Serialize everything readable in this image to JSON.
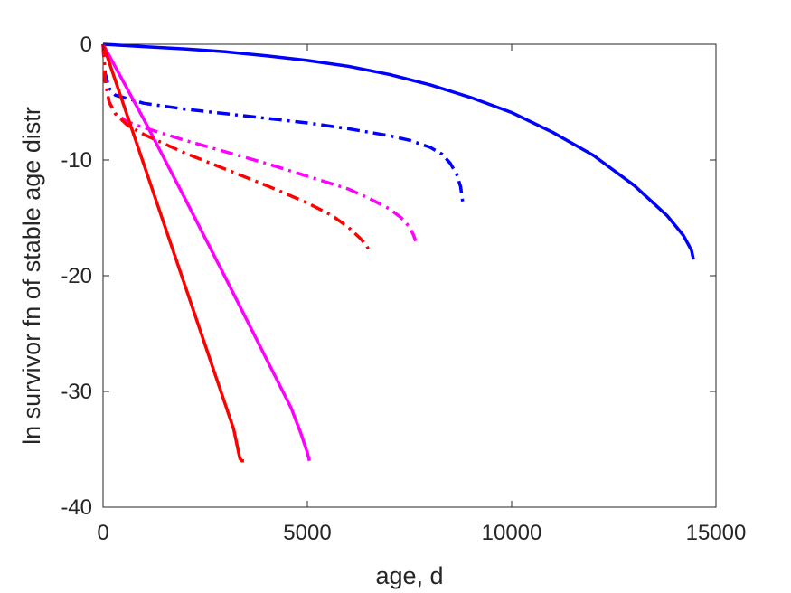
{
  "chart_data": {
    "type": "line",
    "title": "",
    "xlabel": "age, d",
    "ylabel": "ln survivor fn of stable age distr",
    "xlim": [
      0,
      15000
    ],
    "ylim": [
      -40,
      0
    ],
    "xticks": [
      0,
      5000,
      10000,
      15000
    ],
    "yticks": [
      0,
      -10,
      -20,
      -30,
      -40
    ],
    "xtick_labels": [
      "0",
      "5000",
      "10000",
      "15000"
    ],
    "ytick_labels": [
      "0",
      "-10",
      "-20",
      "-30",
      "-40"
    ],
    "grid": false,
    "legend": "none",
    "series": [
      {
        "color": "#0000ff",
        "style": "solid",
        "x": [
          0,
          1000,
          2000,
          3000,
          4000,
          5000,
          6000,
          7000,
          8000,
          9000,
          10000,
          11000,
          12000,
          13000,
          13800,
          14200,
          14400,
          14450
        ],
        "y": [
          0,
          -0.2,
          -0.4,
          -0.65,
          -1.0,
          -1.4,
          -1.9,
          -2.6,
          -3.5,
          -4.6,
          -5.9,
          -7.6,
          -9.6,
          -12.2,
          -14.8,
          -16.5,
          -17.8,
          -18.6
        ]
      },
      {
        "color": "#0000ff",
        "style": "dashdot",
        "x": [
          0,
          50,
          150,
          300,
          1000,
          2000,
          3000,
          4000,
          5000,
          6000,
          7000,
          7500,
          8000,
          8300,
          8500,
          8650,
          8750,
          8800
        ],
        "y": [
          0,
          -2.5,
          -3.8,
          -4.4,
          -5.1,
          -5.6,
          -6.0,
          -6.4,
          -6.8,
          -7.3,
          -7.9,
          -8.3,
          -8.9,
          -9.5,
          -10.3,
          -11.2,
          -12.3,
          -13.6
        ]
      },
      {
        "color": "#ff00ff",
        "style": "solid",
        "x": [
          0,
          1000,
          2000,
          3000,
          4000,
          4600,
          4850,
          5000,
          5050
        ],
        "y": [
          0,
          -6.5,
          -13.3,
          -20.2,
          -27.2,
          -31.4,
          -33.7,
          -35.3,
          -36.0
        ]
      },
      {
        "color": "#ff00ff",
        "style": "dashdot",
        "x": [
          0,
          50,
          150,
          300,
          600,
          1000,
          2000,
          3000,
          4000,
          5000,
          6000,
          6500,
          7000,
          7300,
          7500,
          7600,
          7650
        ],
        "y": [
          0,
          -3.0,
          -5.0,
          -6.0,
          -6.7,
          -7.2,
          -8.3,
          -9.3,
          -10.3,
          -11.4,
          -12.5,
          -13.3,
          -14.2,
          -15.0,
          -15.8,
          -16.5,
          -17.0
        ]
      },
      {
        "color": "#ff0000",
        "style": "solid",
        "x": [
          0,
          500,
          1000,
          1500,
          2000,
          2500,
          3000,
          3200,
          3300,
          3350,
          3400,
          3450
        ],
        "y": [
          0,
          -5.2,
          -10.4,
          -15.6,
          -20.8,
          -26.0,
          -31.2,
          -33.3,
          -35.0,
          -35.8,
          -36.0,
          -36.0
        ]
      },
      {
        "color": "#ff0000",
        "style": "dashdot",
        "x": [
          0,
          50,
          150,
          300,
          600,
          1000,
          2000,
          3000,
          4000,
          5000,
          5600,
          6000,
          6300,
          6450,
          6550
        ],
        "y": [
          0,
          -3.2,
          -5.0,
          -6.0,
          -7.0,
          -7.8,
          -9.4,
          -10.8,
          -12.2,
          -13.7,
          -14.8,
          -15.8,
          -16.8,
          -17.4,
          -18.1
        ]
      }
    ]
  }
}
